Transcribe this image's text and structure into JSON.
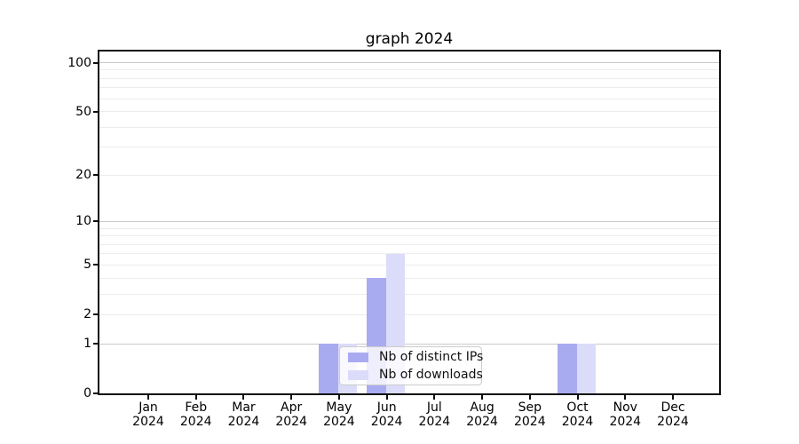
{
  "title": "graph 2024",
  "chart_data": {
    "type": "bar",
    "title": "graph 2024",
    "categories": [
      "Jan",
      "Feb",
      "Mar",
      "Apr",
      "May",
      "Jun",
      "Jul",
      "Aug",
      "Sep",
      "Oct",
      "Nov",
      "Dec"
    ],
    "category_year": "2024",
    "series": [
      {
        "name": "Nb of distinct IPs",
        "color": "#a9abf1",
        "values": [
          0,
          0,
          0,
          0,
          1,
          4,
          0,
          0,
          0,
          1,
          0,
          0
        ]
      },
      {
        "name": "Nb of downloads",
        "color": "#dbdcf9",
        "values": [
          0,
          0,
          0,
          0,
          1,
          6,
          0,
          0,
          0,
          1,
          0,
          0
        ]
      }
    ],
    "y_axis": {
      "scale": "log1p",
      "range": [
        0,
        115
      ],
      "tick_labels": [
        0,
        1,
        2,
        5,
        10,
        20,
        50,
        100
      ],
      "major_gridlines": [
        1,
        10,
        100
      ],
      "minor_gridlines": [
        2,
        3,
        4,
        5,
        6,
        7,
        8,
        9,
        20,
        30,
        40,
        50,
        60,
        70,
        80,
        90
      ]
    },
    "legend": {
      "position": "lower center"
    },
    "colors": {
      "grid_major": "#c9c9c9",
      "grid_minor": "#ececec",
      "spine": "#0d0d0d",
      "background": "#ffffff"
    },
    "grid": "horizontal only"
  }
}
